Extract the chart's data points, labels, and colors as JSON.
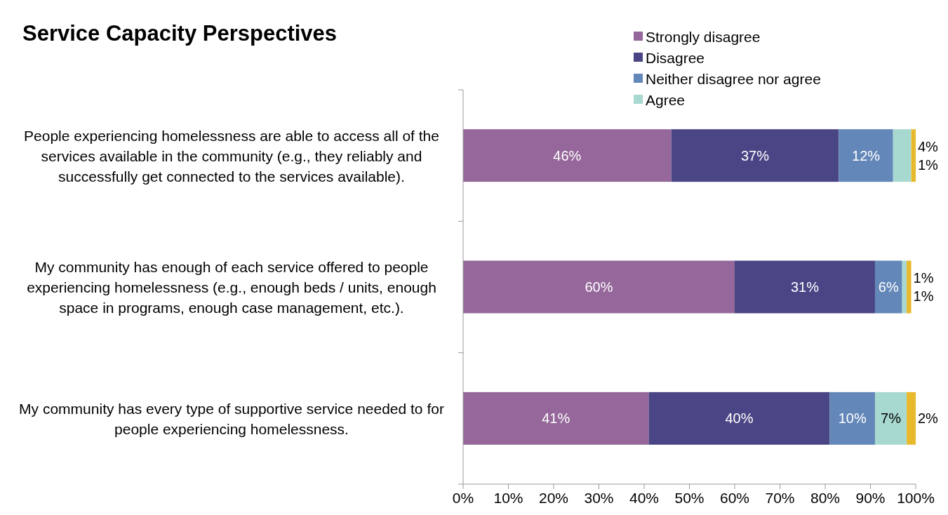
{
  "chart_data": {
    "type": "bar",
    "orientation": "horizontal",
    "stacked": true,
    "title": "Service Capacity Perspectives",
    "categories": [
      "People experiencing homelessness are able to access all of the services available in the community (e.g., they reliably and successfully get connected to the services available).",
      "My community has enough of each service offered to people experiencing homelessness (e.g., enough beds / units, enough space in programs, enough case management, etc.).",
      "My community has every type of supportive service needed to for people experiencing homelessness."
    ],
    "series": [
      {
        "name": "Strongly disagree",
        "color": "#95679a",
        "values": [
          46,
          60,
          41
        ],
        "value_labels": [
          "46%",
          "60%",
          "41%"
        ]
      },
      {
        "name": "Disagree",
        "color": "#4a4585",
        "values": [
          37,
          31,
          40
        ],
        "value_labels": [
          "37%",
          "31%",
          "40%"
        ]
      },
      {
        "name": "Neither disagree nor agree",
        "color": "#6387b8",
        "values": [
          12,
          6,
          10
        ],
        "value_labels": [
          "12%",
          "6%",
          "10%"
        ]
      },
      {
        "name": "Agree",
        "color": "#a8d9d0",
        "values": [
          4,
          1,
          7
        ],
        "value_labels": [
          "4%",
          "1%",
          "7%"
        ]
      },
      {
        "color": "#e8b92c",
        "values": [
          1,
          1,
          2
        ],
        "value_labels": [
          "1%",
          "1%",
          "2%"
        ]
      }
    ],
    "xlim": [
      0,
      100
    ],
    "xticks": [
      {
        "value": 0,
        "label": "0%"
      },
      {
        "value": 10,
        "label": "10%"
      },
      {
        "value": 20,
        "label": "20%"
      },
      {
        "value": 30,
        "label": "30%"
      },
      {
        "value": 40,
        "label": "40%"
      },
      {
        "value": 50,
        "label": "50%"
      },
      {
        "value": 60,
        "label": "60%"
      },
      {
        "value": 70,
        "label": "70%"
      },
      {
        "value": 80,
        "label": "80%"
      },
      {
        "value": 90,
        "label": "90%"
      },
      {
        "value": 100,
        "label": "100%"
      }
    ],
    "legend": "top right"
  }
}
